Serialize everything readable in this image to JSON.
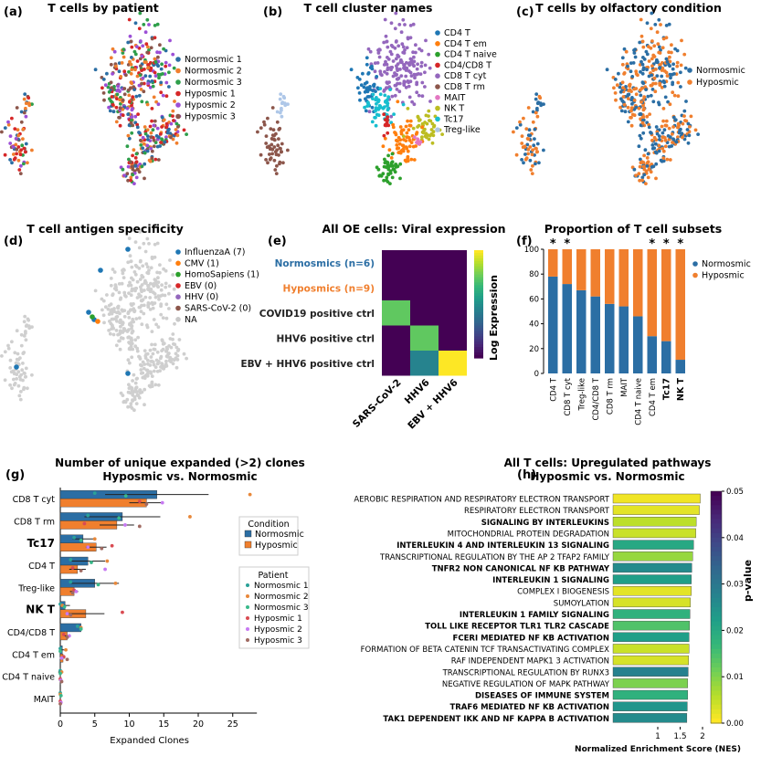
{
  "colors": {
    "normosmic": "#2b6ea4",
    "hyposmic": "#f07f2e",
    "patients": [
      "#2b6ea4",
      "#f07f2e",
      "#2e9e4a",
      "#d62728",
      "#9c4fd6",
      "#8c564b"
    ],
    "clusters": [
      "#1f77b4",
      "#ff7f0e",
      "#2ca02c",
      "#d62728",
      "#9467bd",
      "#8c564b",
      "#e377c2",
      "#bcbd22",
      "#17becf",
      "#aec7e8"
    ],
    "antigen": [
      "#1f77b4",
      "#ff7f0e",
      "#2ca02c",
      "#d62728",
      "#9467bd",
      "#8c564b",
      "#c8c8c8"
    ],
    "grey": "#cfcfcf"
  },
  "panels": {
    "a": {
      "letter": "(a)",
      "title": "T cells by patient",
      "legend": [
        "Normosmic 1",
        "Normosmic 2",
        "Normosmic 3",
        "Hyposmic 1",
        "Hyposmic 2",
        "Hyposmic 3"
      ]
    },
    "b": {
      "letter": "(b)",
      "title": "T cell cluster names",
      "legend": [
        "CD4 T",
        "CD4 T em",
        "CD4 T naive",
        "CD4/CD8 T",
        "CD8 T cyt",
        "CD8 T rm",
        "MAIT",
        "NK T",
        "Tc17",
        "Treg-like"
      ]
    },
    "c": {
      "letter": "(c)",
      "title": "T cells by olfactory condition",
      "legend": [
        "Normosmic",
        "Hyposmic"
      ]
    },
    "d": {
      "letter": "(d)",
      "title": "T cell antigen specificity",
      "legend": [
        "InfluenzaA  (7)",
        "CMV (1)",
        "HomoSapiens (1)",
        "EBV  (0)",
        "HHV (0)",
        "SARS-CoV-2 (0)",
        "NA"
      ]
    },
    "e": {
      "letter": "(e)",
      "title": "All OE cells: Viral expression",
      "colorbar_label": "Log Expression"
    },
    "f": {
      "letter": "(f)",
      "title": "Proportion of T cell subsets",
      "legend": [
        "Normosmic",
        "Hyposmic"
      ],
      "star": "*"
    },
    "g": {
      "letter": "(g)",
      "title_line1": "Number of unique expanded (>2) clones",
      "title_line2": "Hyposmic vs. Normosmic",
      "condition_title": "Condition",
      "condition_legend": [
        "Normosmic",
        "Hyposmic"
      ],
      "patient_title": "Patient",
      "patient_legend": [
        "Normosmic 1",
        "Normosmic 2",
        "Normosmic 3",
        "Hyposmic 1",
        "Hyposmic 2",
        "Hyposmic 3"
      ]
    },
    "h": {
      "letter": "(h)",
      "title_line1": "All T cells: Upregulated pathways",
      "title_line2": "Hyposmic vs. Normosmic",
      "colorbar_label": "p-value"
    }
  },
  "chart_data": [
    {
      "type": "heatmap",
      "panel": "e",
      "rows": [
        "Normosmics (n=6)",
        "Hyposmics (n=9)",
        "COVID19 positive ctrl",
        "HHV6 positive ctrl",
        "EBV + HHV6 positive ctrl"
      ],
      "row_colors": [
        "#2b6ea4",
        "#f07f2e",
        "#222222",
        "#222222",
        "#222222"
      ],
      "columns": [
        "SARS-CoV-2",
        "HHV6",
        "EBV + HHV6"
      ],
      "values": [
        [
          0,
          0,
          0
        ],
        [
          0,
          0,
          0
        ],
        [
          0.75,
          0,
          0
        ],
        [
          0,
          0.75,
          0
        ],
        [
          0,
          0.45,
          1.0
        ]
      ],
      "colorscale": "viridis"
    },
    {
      "type": "bar",
      "panel": "f",
      "stacked": true,
      "categories": [
        "CD4 T",
        "CD8 T cyt",
        "Treg-like",
        "CD4/CD8 T",
        "CD8 T rm",
        "MAIT",
        "CD4 T naive",
        "CD4 T em",
        "Tc17",
        "NK T"
      ],
      "bold_categories": [
        "Tc17",
        "NK T"
      ],
      "starred": [
        "CD4 T",
        "CD8 T cyt",
        "CD4 T em",
        "Tc17",
        "NK T"
      ],
      "series": [
        {
          "name": "Normosmic",
          "values": [
            78,
            72,
            67,
            62,
            56,
            54,
            46,
            30,
            26,
            11
          ]
        },
        {
          "name": "Hyposmic",
          "values": [
            22,
            28,
            33,
            38,
            44,
            46,
            54,
            70,
            74,
            89
          ]
        }
      ],
      "ylim": [
        0,
        100
      ],
      "yticks": [
        0,
        20,
        40,
        60,
        80,
        100
      ]
    },
    {
      "type": "bar",
      "panel": "g",
      "orientation": "horizontal",
      "xlabel": "Expanded Clones",
      "xlim": [
        0,
        28.5
      ],
      "xticks": [
        0,
        5,
        10,
        15,
        20,
        25
      ],
      "categories": [
        "CD8 T cyt",
        "CD8 T rm",
        "Tc17",
        "CD4 T",
        "Treg-like",
        "NK T",
        "CD4/CD8 T",
        "CD4 T em",
        "CD4 T naive",
        "MAIT"
      ],
      "bold_categories": [
        "Tc17",
        "NK T"
      ],
      "series": [
        {
          "name": "Normosmic",
          "values": [
            14,
            9,
            3.3,
            4,
            5,
            0.7,
            3,
            0.3,
            0,
            0
          ],
          "errors": [
            7.5,
            5.5,
            1.5,
            2.5,
            3.5,
            0.7,
            0,
            0.4,
            0.3,
            0
          ]
        },
        {
          "name": "Hyposmic",
          "values": [
            12.5,
            8.2,
            5.2,
            2.5,
            2,
            3.7,
            1,
            0.4,
            0,
            0
          ],
          "errors": [
            2.5,
            2.5,
            1.5,
            1.2,
            0.6,
            2.7,
            0.4,
            0.3,
            0.2,
            0
          ]
        }
      ],
      "points": [
        [
          [
            5,
            27.5,
            9.5
          ],
          [
            11.5,
            14.8,
            12.5
          ]
        ],
        [
          [
            4,
            18.8,
            8.5
          ],
          [
            3.5,
            9.4,
            11.5
          ]
        ],
        [
          [
            2,
            5,
            3
          ],
          [
            7.5,
            4,
            6
          ]
        ],
        [
          [
            1.5,
            6.8,
            4.5
          ],
          [
            1.8,
            6.5,
            3
          ]
        ],
        [
          [
            1.5,
            8,
            5.5
          ],
          [
            2,
            2.3,
            1.8
          ]
        ],
        [
          [
            0,
            0.3,
            0.6
          ],
          [
            9,
            1,
            1.5
          ]
        ],
        [
          [
            2.5,
            3,
            3
          ],
          [
            0.5,
            1.3,
            1
          ]
        ],
        [
          [
            0,
            0.8,
            0
          ],
          [
            0.5,
            0.2,
            1
          ]
        ],
        [
          [
            0,
            0.2,
            0
          ],
          [
            0,
            0.1,
            0.2
          ]
        ],
        [
          [
            0,
            0,
            0.1
          ],
          [
            0,
            0.1,
            0
          ]
        ]
      ]
    },
    {
      "type": "bar",
      "panel": "h",
      "orientation": "horizontal",
      "xlabel": "Normalized Enrichment Score (NES)",
      "xlim": [
        0,
        2
      ],
      "xticks": [
        1,
        1.5,
        2
      ],
      "clim": [
        0,
        0.05
      ],
      "cticks": [
        0,
        0.01,
        0.02,
        0.03,
        0.04,
        0.05
      ],
      "categories": [
        "AEROBIC RESPIRATION AND RESPIRATORY ELECTRON TRANSPORT",
        "RESPIRATORY ELECTRON TRANSPORT",
        "SIGNALING BY INTERLEUKINS",
        "MITOCHONDRIAL PROTEIN DEGRADATION",
        "INTERLEUKIN 4 AND INTERLEUKIN 13 SIGNALING",
        "TRANSCRIPTIONAL REGULATION BY THE AP 2 TFAP2 FAMILY",
        "TNFR2 NON CANONICAL NF KB PATHWAY",
        "INTERLEUKIN 1 SIGNALING",
        "COMPLEX I BIOGENESIS",
        "SUMOYLATION",
        "INTERLEUKIN 1 FAMILY SIGNALING",
        "TOLL LIKE RECEPTOR TLR1 TLR2 CASCADE",
        "FCERI MEDIATED NF KB ACTIVATION",
        "FORMATION OF BETA CATENIN TCF TRANSACTIVATING COMPLEX",
        "RAF INDEPENDENT MAPK1 3 ACTIVATION",
        "TRANSCRIPTIONAL REGULATION BY RUNX3",
        "NEGATIVE REGULATION OF MAPK PATHWAY",
        "DISEASES OF IMMUNE SYSTEM",
        "TRAF6 MEDIATED NF KB ACTIVATION",
        "TAK1 DEPENDENT IKK AND NF KAPPA B ACTIVATION"
      ],
      "bold": [
        false,
        false,
        true,
        false,
        true,
        false,
        true,
        true,
        false,
        false,
        true,
        true,
        true,
        false,
        false,
        false,
        false,
        true,
        true,
        true
      ],
      "values": [
        1.95,
        1.93,
        1.86,
        1.85,
        1.8,
        1.78,
        1.76,
        1.75,
        1.75,
        1.73,
        1.72,
        1.71,
        1.7,
        1.7,
        1.69,
        1.68,
        1.67,
        1.67,
        1.66,
        1.65
      ],
      "pvalues": [
        0.001,
        0.002,
        0.005,
        0.004,
        0.02,
        0.008,
        0.026,
        0.022,
        0.002,
        0.003,
        0.018,
        0.014,
        0.022,
        0.004,
        0.003,
        0.028,
        0.01,
        0.018,
        0.024,
        0.026
      ]
    }
  ]
}
